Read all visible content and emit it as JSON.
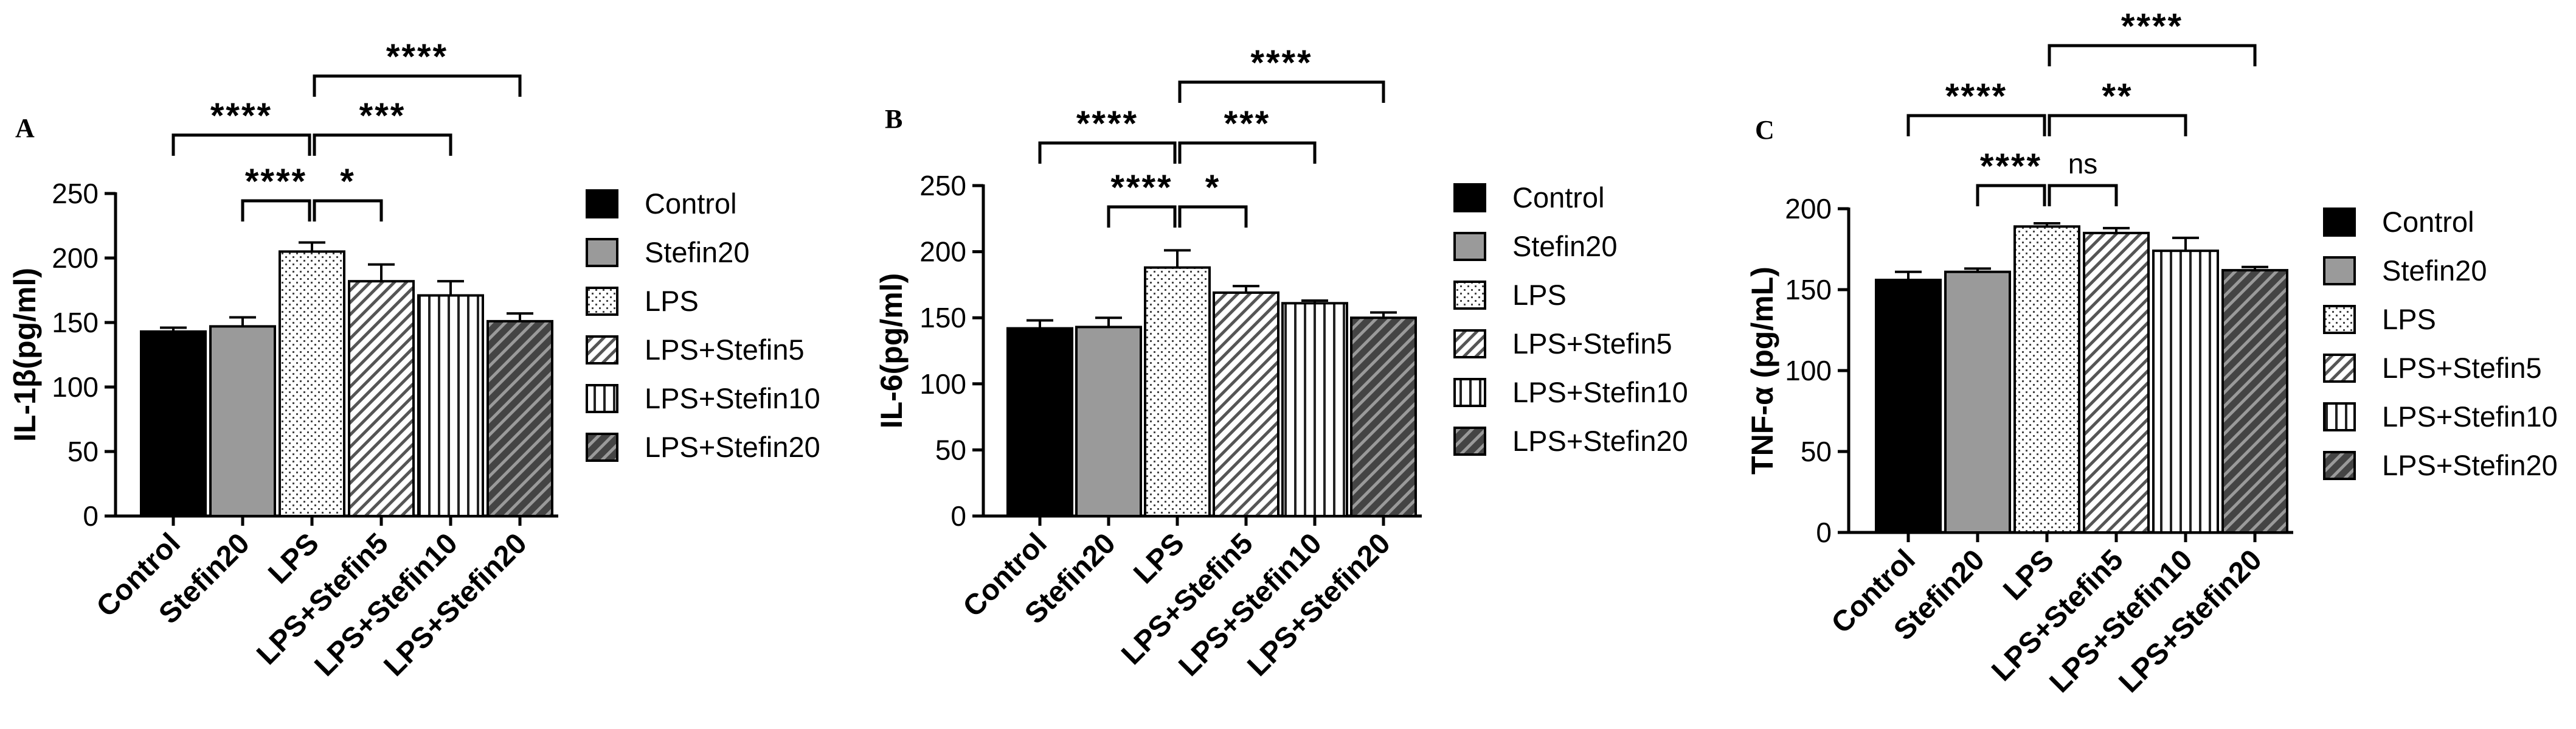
{
  "legend": [
    "Control",
    "Stefin20",
    "LPS",
    "LPS+Stefin5",
    "LPS+Stefin10",
    "LPS+Stefin20"
  ],
  "chart_data": [
    {
      "type": "bar",
      "panel": "A",
      "ylabel": "IL-1β(pg/ml)",
      "ylim": [
        0,
        250
      ],
      "yticks": [
        0,
        50,
        100,
        150,
        200,
        250
      ],
      "categories": [
        "Control",
        "Stefin20",
        "LPS",
        "LPS+Stefin5",
        "LPS+Stefin10",
        "LPS+Stefin20"
      ],
      "values": [
        143,
        147,
        205,
        182,
        171,
        151
      ],
      "errors": [
        3,
        7,
        7,
        13,
        11,
        6
      ],
      "significance": [
        {
          "from": 2,
          "to": 5,
          "label": "****"
        },
        {
          "from": 0,
          "to": 2,
          "label": "****"
        },
        {
          "from": 2,
          "to": 4,
          "label": "***"
        },
        {
          "from": 1,
          "to": 2,
          "label": "****"
        },
        {
          "from": 2,
          "to": 3,
          "label": "*"
        }
      ]
    },
    {
      "type": "bar",
      "panel": "B",
      "ylabel": "IL-6(pg/ml)",
      "ylim": [
        0,
        250
      ],
      "yticks": [
        0,
        50,
        100,
        150,
        200,
        250
      ],
      "categories": [
        "Control",
        "Stefin20",
        "LPS",
        "LPS+Stefin5",
        "LPS+Stefin10",
        "LPS+Stefin20"
      ],
      "values": [
        142,
        143,
        188,
        169,
        161,
        150
      ],
      "errors": [
        6,
        7,
        13,
        5,
        2,
        4
      ],
      "significance": [
        {
          "from": 2,
          "to": 5,
          "label": "****"
        },
        {
          "from": 0,
          "to": 2,
          "label": "****"
        },
        {
          "from": 2,
          "to": 4,
          "label": "***"
        },
        {
          "from": 1,
          "to": 2,
          "label": "****"
        },
        {
          "from": 2,
          "to": 3,
          "label": "*"
        }
      ]
    },
    {
      "type": "bar",
      "panel": "C",
      "ylabel": "TNF-α (pg/mL)",
      "ylim": [
        0,
        200
      ],
      "yticks": [
        0,
        50,
        100,
        150,
        200
      ],
      "categories": [
        "Control",
        "Stefin20",
        "LPS",
        "LPS+Stefin5",
        "LPS+Stefin10",
        "LPS+Stefin20"
      ],
      "values": [
        156,
        161,
        189,
        185,
        174,
        162
      ],
      "errors": [
        5,
        2,
        2,
        3,
        8,
        2
      ],
      "significance": [
        {
          "from": 2,
          "to": 5,
          "label": "****"
        },
        {
          "from": 0,
          "to": 2,
          "label": "****"
        },
        {
          "from": 2,
          "to": 4,
          "label": "**"
        },
        {
          "from": 1,
          "to": 2,
          "label": "****"
        },
        {
          "from": 2,
          "to": 3,
          "label": "ns"
        }
      ]
    }
  ]
}
